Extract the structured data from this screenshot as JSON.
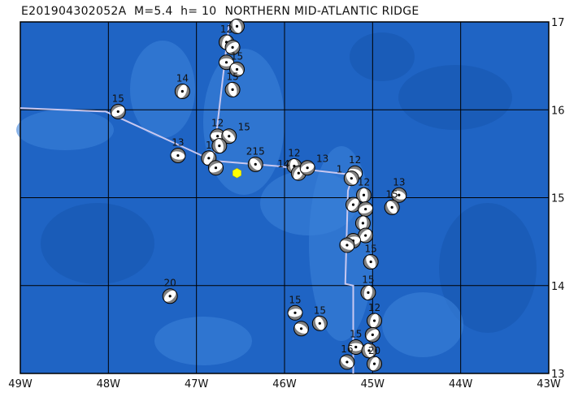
{
  "title": {
    "event_id": "E201904302052A  M=5.4  h= 10",
    "region": "NORTHERN MID-ATLANTIC RIDGE"
  },
  "map": {
    "lon_range": [
      -49,
      -43
    ],
    "lat_range": [
      13,
      17
    ],
    "lon_ticks": [
      {
        "v": -49,
        "label": "49W"
      },
      {
        "v": -48,
        "label": "48W"
      },
      {
        "v": -47,
        "label": "47W"
      },
      {
        "v": -46,
        "label": "46W"
      },
      {
        "v": -45,
        "label": "45W"
      },
      {
        "v": -44,
        "label": "44W"
      },
      {
        "v": -43,
        "label": "43W"
      }
    ],
    "lat_ticks": [
      {
        "v": 17,
        "label": "17N"
      },
      {
        "v": 16,
        "label": "16N"
      },
      {
        "v": 15,
        "label": "15N"
      },
      {
        "v": 14,
        "label": "14N"
      },
      {
        "v": 13,
        "label": "13N"
      }
    ],
    "colors": {
      "ocean": "#1f64c4",
      "ocean_light": "#3a80d8",
      "ocean_dark": "#1856b0",
      "plate_boundary": "#c8c8f0",
      "beachball_fill": "#808080",
      "main_event": "#ffff00",
      "grid": "#000000"
    },
    "main_event": {
      "lon": -46.54,
      "lat": 15.28
    },
    "plate_boundary": [
      [
        [
          -49,
          16.02
        ],
        [
          -48.03,
          15.98
        ],
        [
          -46.81,
          15.42
        ],
        [
          -46.09,
          15.36
        ],
        [
          -45.22,
          15.26
        ],
        [
          -45.28,
          15.08
        ],
        [
          -45.31,
          14.02
        ],
        [
          -45.22,
          14.0
        ],
        [
          -45.22,
          13.0
        ]
      ],
      [
        [
          -46.81,
          15.42
        ],
        [
          -46.63,
          16.97
        ]
      ]
    ],
    "mechanisms": [
      {
        "lon": -46.54,
        "lat": 16.95,
        "depth": ""
      },
      {
        "lon": -46.66,
        "lat": 16.77,
        "depth": "12"
      },
      {
        "lon": -46.59,
        "lat": 16.71,
        "depth": ""
      },
      {
        "lon": -46.66,
        "lat": 16.54,
        "depth": ""
      },
      {
        "lon": -46.54,
        "lat": 16.46,
        "depth": "15"
      },
      {
        "lon": -46.59,
        "lat": 16.23,
        "depth": "15"
      },
      {
        "lon": -47.16,
        "lat": 16.21,
        "depth": "14"
      },
      {
        "lon": -47.89,
        "lat": 15.98,
        "depth": "15"
      },
      {
        "lon": -46.76,
        "lat": 15.7,
        "depth": "12"
      },
      {
        "lon": -46.63,
        "lat": 15.7,
        "depth": "15"
      },
      {
        "lon": -46.74,
        "lat": 15.59,
        "depth": ""
      },
      {
        "lon": -46.86,
        "lat": 15.45,
        "depth": "1"
      },
      {
        "lon": -46.78,
        "lat": 15.34,
        "depth": ""
      },
      {
        "lon": -47.21,
        "lat": 15.48,
        "depth": "13"
      },
      {
        "lon": -46.33,
        "lat": 15.38,
        "depth": "215"
      },
      {
        "lon": -45.89,
        "lat": 15.36,
        "depth": "12"
      },
      {
        "lon": -45.84,
        "lat": 15.28,
        "depth": "14"
      },
      {
        "lon": -45.74,
        "lat": 15.34,
        "depth": "13"
      },
      {
        "lon": -45.2,
        "lat": 15.28,
        "depth": "12"
      },
      {
        "lon": -45.24,
        "lat": 15.22,
        "depth": "1"
      },
      {
        "lon": -45.1,
        "lat": 15.03,
        "depth": "12"
      },
      {
        "lon": -45.22,
        "lat": 14.92,
        "depth": ""
      },
      {
        "lon": -45.08,
        "lat": 14.87,
        "depth": ""
      },
      {
        "lon": -44.7,
        "lat": 15.03,
        "depth": "13"
      },
      {
        "lon": -44.78,
        "lat": 14.89,
        "depth": "15"
      },
      {
        "lon": -45.11,
        "lat": 14.71,
        "depth": ""
      },
      {
        "lon": -45.08,
        "lat": 14.57,
        "depth": ""
      },
      {
        "lon": -45.22,
        "lat": 14.51,
        "depth": ""
      },
      {
        "lon": -45.29,
        "lat": 14.46,
        "depth": ""
      },
      {
        "lon": -45.02,
        "lat": 14.27,
        "depth": "15"
      },
      {
        "lon": -45.05,
        "lat": 13.92,
        "depth": "15"
      },
      {
        "lon": -47.3,
        "lat": 13.88,
        "depth": "20"
      },
      {
        "lon": -45.88,
        "lat": 13.69,
        "depth": "15"
      },
      {
        "lon": -45.81,
        "lat": 13.51,
        "depth": ""
      },
      {
        "lon": -45.6,
        "lat": 13.57,
        "depth": "15"
      },
      {
        "lon": -44.98,
        "lat": 13.6,
        "depth": "12"
      },
      {
        "lon": -45.0,
        "lat": 13.44,
        "depth": ""
      },
      {
        "lon": -45.19,
        "lat": 13.3,
        "depth": "15"
      },
      {
        "lon": -45.29,
        "lat": 13.13,
        "depth": "16"
      },
      {
        "lon": -45.04,
        "lat": 13.26,
        "depth": ""
      },
      {
        "lon": -44.98,
        "lat": 13.11,
        "depth": "20"
      }
    ]
  }
}
